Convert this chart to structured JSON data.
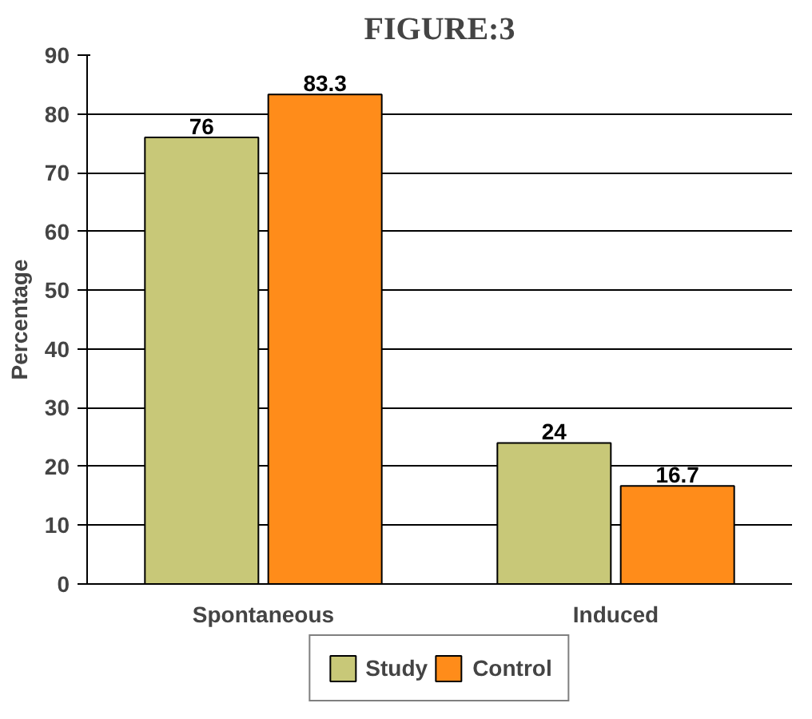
{
  "chart_data": {
    "type": "bar",
    "title": "FIGURE:3",
    "ylabel": "Percentage",
    "categories": [
      "Spontaneous",
      "Induced"
    ],
    "series": [
      {
        "name": "Study",
        "color": "#c8c878",
        "values": [
          76,
          24
        ]
      },
      {
        "name": "Control",
        "color": "#ff8c1a",
        "values": [
          83.3,
          16.7
        ]
      }
    ],
    "ylim": [
      0,
      90
    ],
    "yticks": [
      0,
      10,
      20,
      30,
      40,
      50,
      60,
      70,
      80,
      90
    ],
    "grid": "y",
    "legend": "bottom",
    "data_labels": true
  }
}
